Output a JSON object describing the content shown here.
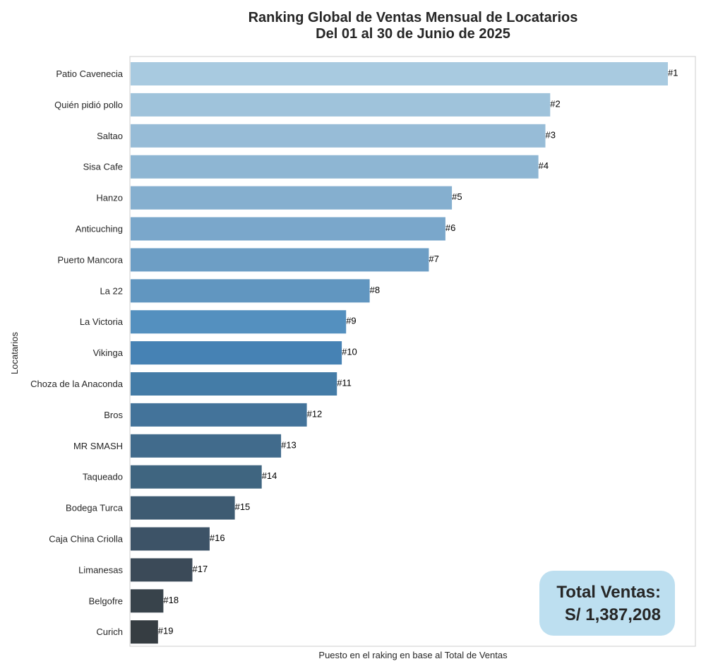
{
  "chart_data": {
    "type": "bar",
    "orientation": "horizontal",
    "title_line1": "Ranking Global de Ventas Mensual de Locatarios",
    "title_line2": "Del 01 al 30 de Junio de 2025",
    "xlabel": "Puesto en el raking en base al Total de Ventas",
    "ylabel": "Locatarios",
    "x_tick_labels": "none",
    "grid": false,
    "categories": [
      "Patio Cavenecia",
      "Quién pidió pollo",
      "Saltao",
      "Sisa Cafe",
      "Hanzo",
      "Anticuching",
      "Puerto Mancora",
      "La 22",
      "La Victoria",
      "Vikinga",
      "Choza de la Anaconda",
      "Bros",
      "MR SMASH",
      "Taqueado",
      "Bodega Turca",
      "Caja China Criolla",
      "Limanesas",
      "Belgofre",
      "Curich"
    ],
    "values_relative": [
      1.0,
      0.781,
      0.772,
      0.759,
      0.598,
      0.586,
      0.555,
      0.445,
      0.401,
      0.393,
      0.384,
      0.328,
      0.28,
      0.244,
      0.194,
      0.147,
      0.115,
      0.061,
      0.051
    ],
    "data_labels": [
      "#1",
      "#2",
      "#3",
      "#4",
      "#5",
      "#6",
      "#7",
      "#8",
      "#9",
      "#10",
      "#11",
      "#12",
      "#13",
      "#14",
      "#15",
      "#16",
      "#17",
      "#18",
      "#19"
    ],
    "colors": [
      "#a8cae0",
      "#9fc3db",
      "#97bcd7",
      "#8eb6d3",
      "#85afcf",
      "#7aa7cb",
      "#6d9ec5",
      "#6196c0",
      "#5490bf",
      "#4682b4",
      "#447ca7",
      "#43739a",
      "#416b8c",
      "#3f6580",
      "#3e5b72",
      "#3d5367",
      "#3b4a58",
      "#38434b",
      "#363d42"
    ]
  },
  "summary_box": {
    "line1": "Total Ventas:",
    "line2": "S/ 1,387,208",
    "background": "#bddff0"
  },
  "colors": {
    "axis_frame": "#cccccc",
    "text": "#262626"
  }
}
